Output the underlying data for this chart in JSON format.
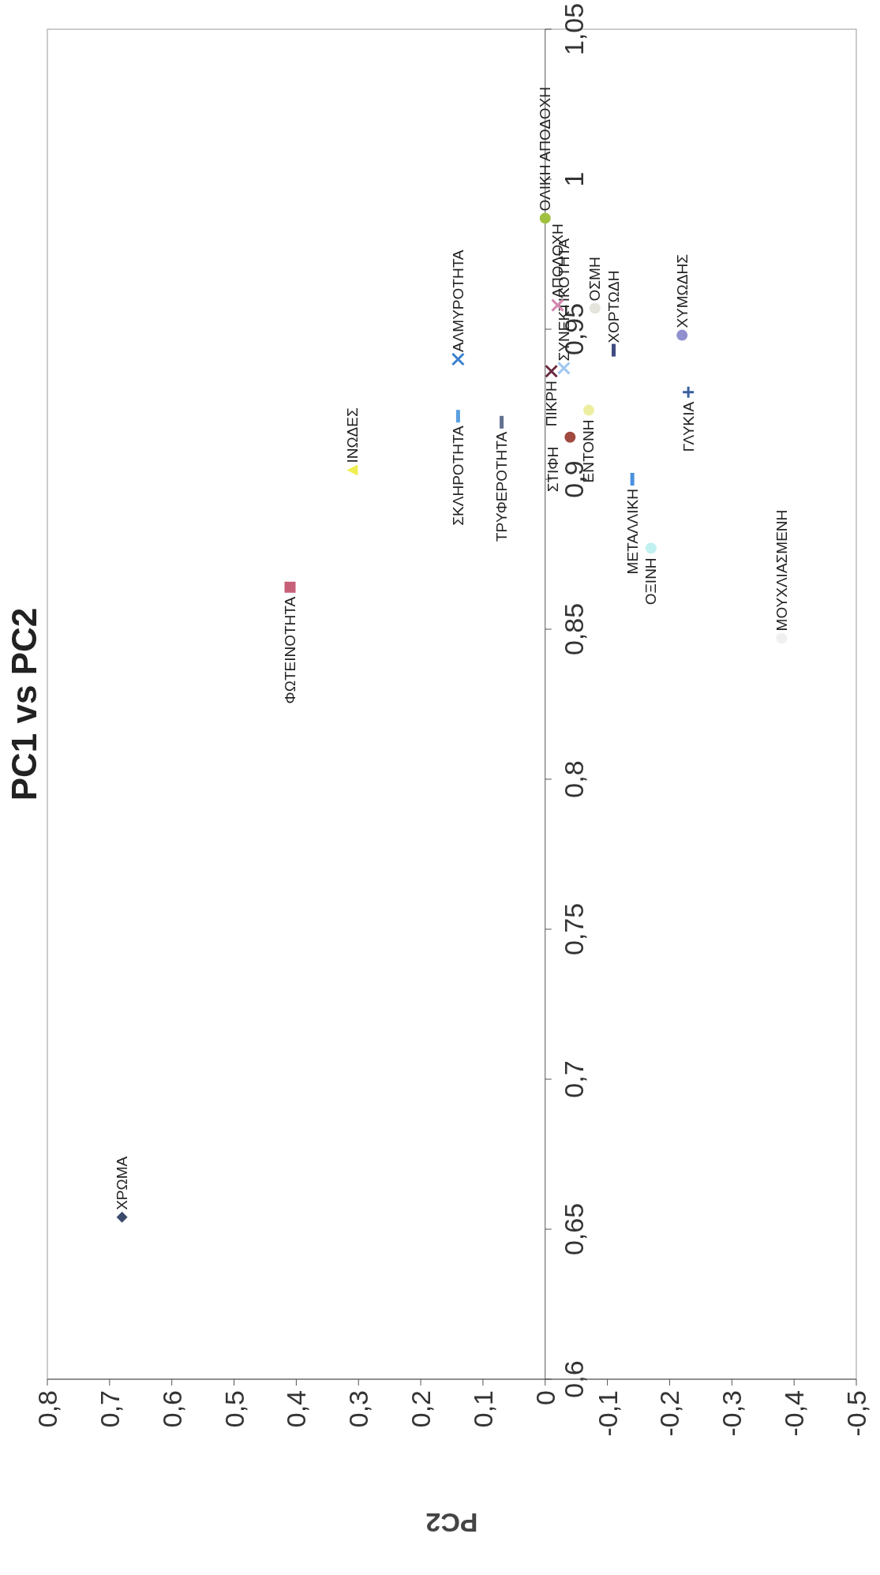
{
  "chart_data": {
    "type": "scatter",
    "title": "PC1 vs PC2",
    "xlabel": "PC2",
    "ylim": [
      0.6,
      1.05
    ],
    "xlim": [
      0.8,
      -0.5
    ],
    "yticks": [
      {
        "value": 0.6,
        "label": "0,6"
      },
      {
        "value": 0.65,
        "label": "0,65"
      },
      {
        "value": 0.7,
        "label": "0,7"
      },
      {
        "value": 0.75,
        "label": "0,75"
      },
      {
        "value": 0.8,
        "label": "0,8"
      },
      {
        "value": 0.85,
        "label": "0,85"
      },
      {
        "value": 0.9,
        "label": "0,9"
      },
      {
        "value": 0.95,
        "label": "0,95"
      },
      {
        "value": 1,
        "label": "1"
      },
      {
        "value": 1.05,
        "label": "1,05"
      }
    ],
    "xticks": [
      {
        "value": 0.8,
        "label": "0,8"
      },
      {
        "value": 0.7,
        "label": "0,7"
      },
      {
        "value": 0.6,
        "label": "0,6"
      },
      {
        "value": 0.5,
        "label": "0,5"
      },
      {
        "value": 0.4,
        "label": "0,4"
      },
      {
        "value": 0.3,
        "label": "0,3"
      },
      {
        "value": 0.2,
        "label": "0,2"
      },
      {
        "value": 0.1,
        "label": "0,1"
      },
      {
        "value": 0,
        "label": "0"
      },
      {
        "value": -0.1,
        "label": "-0,1"
      },
      {
        "value": -0.2,
        "label": "-0,2"
      },
      {
        "value": -0.3,
        "label": "-0,3"
      },
      {
        "value": -0.4,
        "label": "-0,4"
      },
      {
        "value": -0.5,
        "label": "-0,5"
      }
    ],
    "series": [
      {
        "name": "ΧΡΩΜΑ",
        "color": "#3b4a6b",
        "marker": "diamond",
        "x": [
          0.68
        ],
        "values": [
          0.654
        ]
      },
      {
        "name": "ΦΩΤΕΙΝΟΤΗΤΑ",
        "color": "#c8607a",
        "marker": "square",
        "x": [
          0.41
        ],
        "values": [
          0.864
        ]
      },
      {
        "name": "ΙΝΩΔΕΣ",
        "color": "#eeee50",
        "marker": "triangle",
        "x": [
          0.31
        ],
        "values": [
          0.903
        ]
      },
      {
        "name": "ΑΛΜΥΡΟΤΗΤΑ",
        "color": "#3a80d0",
        "marker": "cross",
        "x": [
          0.14
        ],
        "values": [
          0.94
        ]
      },
      {
        "name": "ΣΚΛΗΡΟΤΗΤΑ",
        "color": "#5aa0e0",
        "x": [
          0.14
        ],
        "values": [
          0.921
        ]
      },
      {
        "name": "ΤΡΥΦΕΡΟΤΗΤΑ",
        "color": "#607090",
        "x": [
          0.07
        ],
        "values": [
          0.919
        ]
      },
      {
        "name": "ΠΙΚΡΗ",
        "color": "#6a2a40",
        "marker": "cross",
        "x": [
          -0.01
        ],
        "values": [
          0.936
        ]
      },
      {
        "name": "ΣΥΝΕΚΤΙΚΟΤΗΤΑ",
        "color": "#a0c8f0",
        "marker": "cross",
        "x": [
          -0.03
        ],
        "values": [
          0.937
        ]
      },
      {
        "name": "ΑΠΟΔΟΧΗ",
        "color": "#d488b0",
        "marker": "cross",
        "x": [
          -0.02
        ],
        "values": [
          0.958
        ]
      },
      {
        "name": "ΟΛΙΚΗ ΑΠΟΔΟΧΗ",
        "color": "#a0c040",
        "marker": "circle",
        "x": [
          0
        ],
        "values": [
          0.987
        ]
      },
      {
        "name": "ΟΣΜΗ",
        "color": "#e4e4dc",
        "marker": "circle",
        "x": [
          -0.08
        ],
        "values": [
          0.957
        ]
      },
      {
        "name": "ΧΟΡΤΩΔΗ",
        "color": "#404a80",
        "x": [
          -0.11
        ],
        "values": [
          0.943
        ]
      },
      {
        "name": "ΧΥΜΩΔΗΣ",
        "color": "#9090d0",
        "marker": "circle",
        "x": [
          -0.22
        ],
        "values": [
          0.948
        ]
      },
      {
        "name": "ΓΛΥΚΙΑ",
        "color": "#3a60a0",
        "marker": "plus",
        "x": [
          -0.23
        ],
        "values": [
          0.929
        ]
      },
      {
        "name": "ΕΝΤΟΝΗ",
        "color": "#eeeea0",
        "marker": "circle",
        "x": [
          -0.07
        ],
        "values": [
          0.923
        ]
      },
      {
        "name": "ΣΤΙΦΗ",
        "color": "#a04a40",
        "marker": "circle",
        "x": [
          -0.04
        ],
        "values": [
          0.914
        ]
      },
      {
        "name": "ΜΕΤΑΛΛΙΚΗ",
        "color": "#4a90e0",
        "x": [
          -0.14
        ],
        "values": [
          0.9
        ]
      },
      {
        "name": "ΟΞΙΝΗ",
        "color": "#c0f0f0",
        "marker": "circle",
        "x": [
          -0.17
        ],
        "values": [
          0.877
        ]
      },
      {
        "name": "ΜΟΥΧΛΙΑΣΜΕΝΗ",
        "color": "#f0f0f0",
        "marker": "circle",
        "x": [
          -0.38
        ],
        "values": [
          0.847
        ]
      }
    ]
  }
}
